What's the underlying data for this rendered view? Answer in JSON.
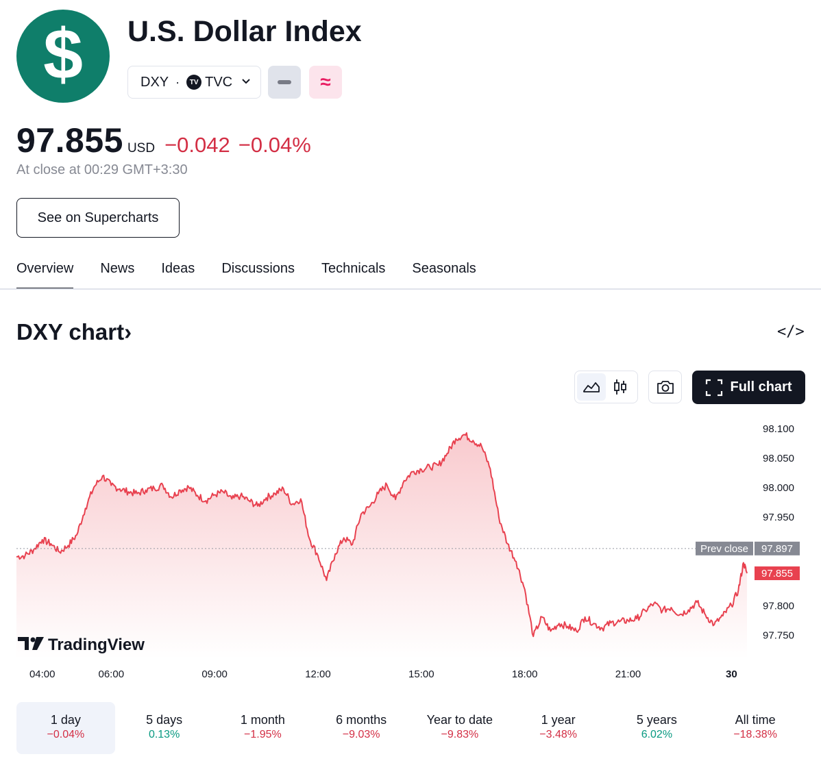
{
  "header": {
    "logo_glyph": "$",
    "title": "U.S. Dollar Index",
    "symbol": "DXY",
    "separator": "·",
    "exchange": "TVC",
    "tv_badge": "TV",
    "logo_color": "#0f7e6a"
  },
  "quote": {
    "price": "97.855",
    "currency": "USD",
    "change": "−0.042",
    "change_percent": "−0.04%",
    "close_time": "At close at 00:29 GMT+3:30"
  },
  "buttons": {
    "supercharts": "See on Supercharts",
    "full_chart": "Full chart"
  },
  "tabs": [
    {
      "label": "Overview",
      "active": true
    },
    {
      "label": "News"
    },
    {
      "label": "Ideas"
    },
    {
      "label": "Discussions"
    },
    {
      "label": "Technicals"
    },
    {
      "label": "Seasonals"
    }
  ],
  "section": {
    "title": "DXY chart›",
    "embed_icon": "</>"
  },
  "ranges": [
    {
      "label": "1 day",
      "change": "−0.04%",
      "dir": "neg",
      "selected": true
    },
    {
      "label": "5 days",
      "change": "0.13%",
      "dir": "pos"
    },
    {
      "label": "1 month",
      "change": "−1.95%",
      "dir": "neg"
    },
    {
      "label": "6 months",
      "change": "−9.03%",
      "dir": "neg"
    },
    {
      "label": "Year to date",
      "change": "−9.83%",
      "dir": "neg"
    },
    {
      "label": "1 year",
      "change": "−3.48%",
      "dir": "neg"
    },
    {
      "label": "5 years",
      "change": "6.02%",
      "dir": "pos"
    },
    {
      "label": "All time",
      "change": "−18.38%",
      "dir": "neg"
    }
  ],
  "colors": {
    "line": "#e8414f",
    "negative": "#d32f45",
    "positive": "#089981",
    "prev_close_label_bg": "#868993",
    "last_price_label_bg": "#e8414f"
  },
  "chart_data": {
    "type": "area",
    "watermark": "TradingView",
    "x_tick_labels": [
      "04:00",
      "06:00",
      "09:00",
      "12:00",
      "15:00",
      "18:00",
      "21:00",
      "30"
    ],
    "x_ticks_hours": [
      4,
      6,
      9,
      12,
      15,
      18,
      21,
      24
    ],
    "y_tick_labels": [
      "98.100",
      "98.050",
      "98.000",
      "97.950",
      "97.800",
      "97.750"
    ],
    "ylim": [
      97.71,
      98.13
    ],
    "xlim": [
      3.25,
      24.55
    ],
    "prev_close": {
      "label": "Prev close",
      "value": 97.897,
      "text": "97.897"
    },
    "last_price": {
      "value": 97.855,
      "text": "97.855"
    },
    "series": [
      {
        "x": [
          3.25,
          3.5,
          3.75,
          4.0,
          4.25,
          4.5,
          4.75,
          5.0,
          5.25,
          5.5,
          5.75,
          6.0,
          6.25,
          6.5,
          6.75,
          7.0,
          7.25,
          7.5,
          7.75,
          8.0,
          8.25,
          8.5,
          8.75,
          9.0,
          9.25,
          9.5,
          9.75,
          10.0,
          10.25,
          10.5,
          10.75,
          11.0,
          11.25,
          11.5,
          11.75,
          12.0,
          12.25,
          12.5,
          12.75,
          13.0,
          13.25,
          13.5,
          13.75,
          14.0,
          14.25,
          14.5,
          14.75,
          15.0,
          15.25,
          15.5,
          15.75,
          16.0,
          16.25,
          16.5,
          16.75,
          17.0,
          17.25,
          17.5,
          17.75,
          18.0,
          18.25,
          18.5,
          18.75,
          19.0,
          19.25,
          19.5,
          19.75,
          20.0,
          20.25,
          20.5,
          20.75,
          21.0,
          21.25,
          21.5,
          21.75,
          22.0,
          22.25,
          22.5,
          22.75,
          23.0,
          23.25,
          23.5,
          23.75,
          24.0,
          24.2,
          24.35,
          24.45
        ],
        "values": [
          97.883,
          97.885,
          97.895,
          97.912,
          97.905,
          97.891,
          97.902,
          97.92,
          97.965,
          98.001,
          98.02,
          98.004,
          97.998,
          97.993,
          97.99,
          97.996,
          97.999,
          98.004,
          97.984,
          97.996,
          98.001,
          97.987,
          97.978,
          97.988,
          97.993,
          97.981,
          97.986,
          97.978,
          97.969,
          97.983,
          97.99,
          97.998,
          97.972,
          97.981,
          97.914,
          97.885,
          97.843,
          97.888,
          97.915,
          97.904,
          97.955,
          97.968,
          97.99,
          98.005,
          97.98,
          98.012,
          98.027,
          98.031,
          98.035,
          98.038,
          98.058,
          98.083,
          98.09,
          98.08,
          98.07,
          98.032,
          97.95,
          97.905,
          97.875,
          97.828,
          97.748,
          97.781,
          97.757,
          97.77,
          97.765,
          97.757,
          97.781,
          97.77,
          97.762,
          97.771,
          97.773,
          97.775,
          97.778,
          97.792,
          97.804,
          97.792,
          97.797,
          97.785,
          97.793,
          97.806,
          97.784,
          97.768,
          97.783,
          97.801,
          97.826,
          97.873,
          97.855
        ]
      }
    ]
  }
}
